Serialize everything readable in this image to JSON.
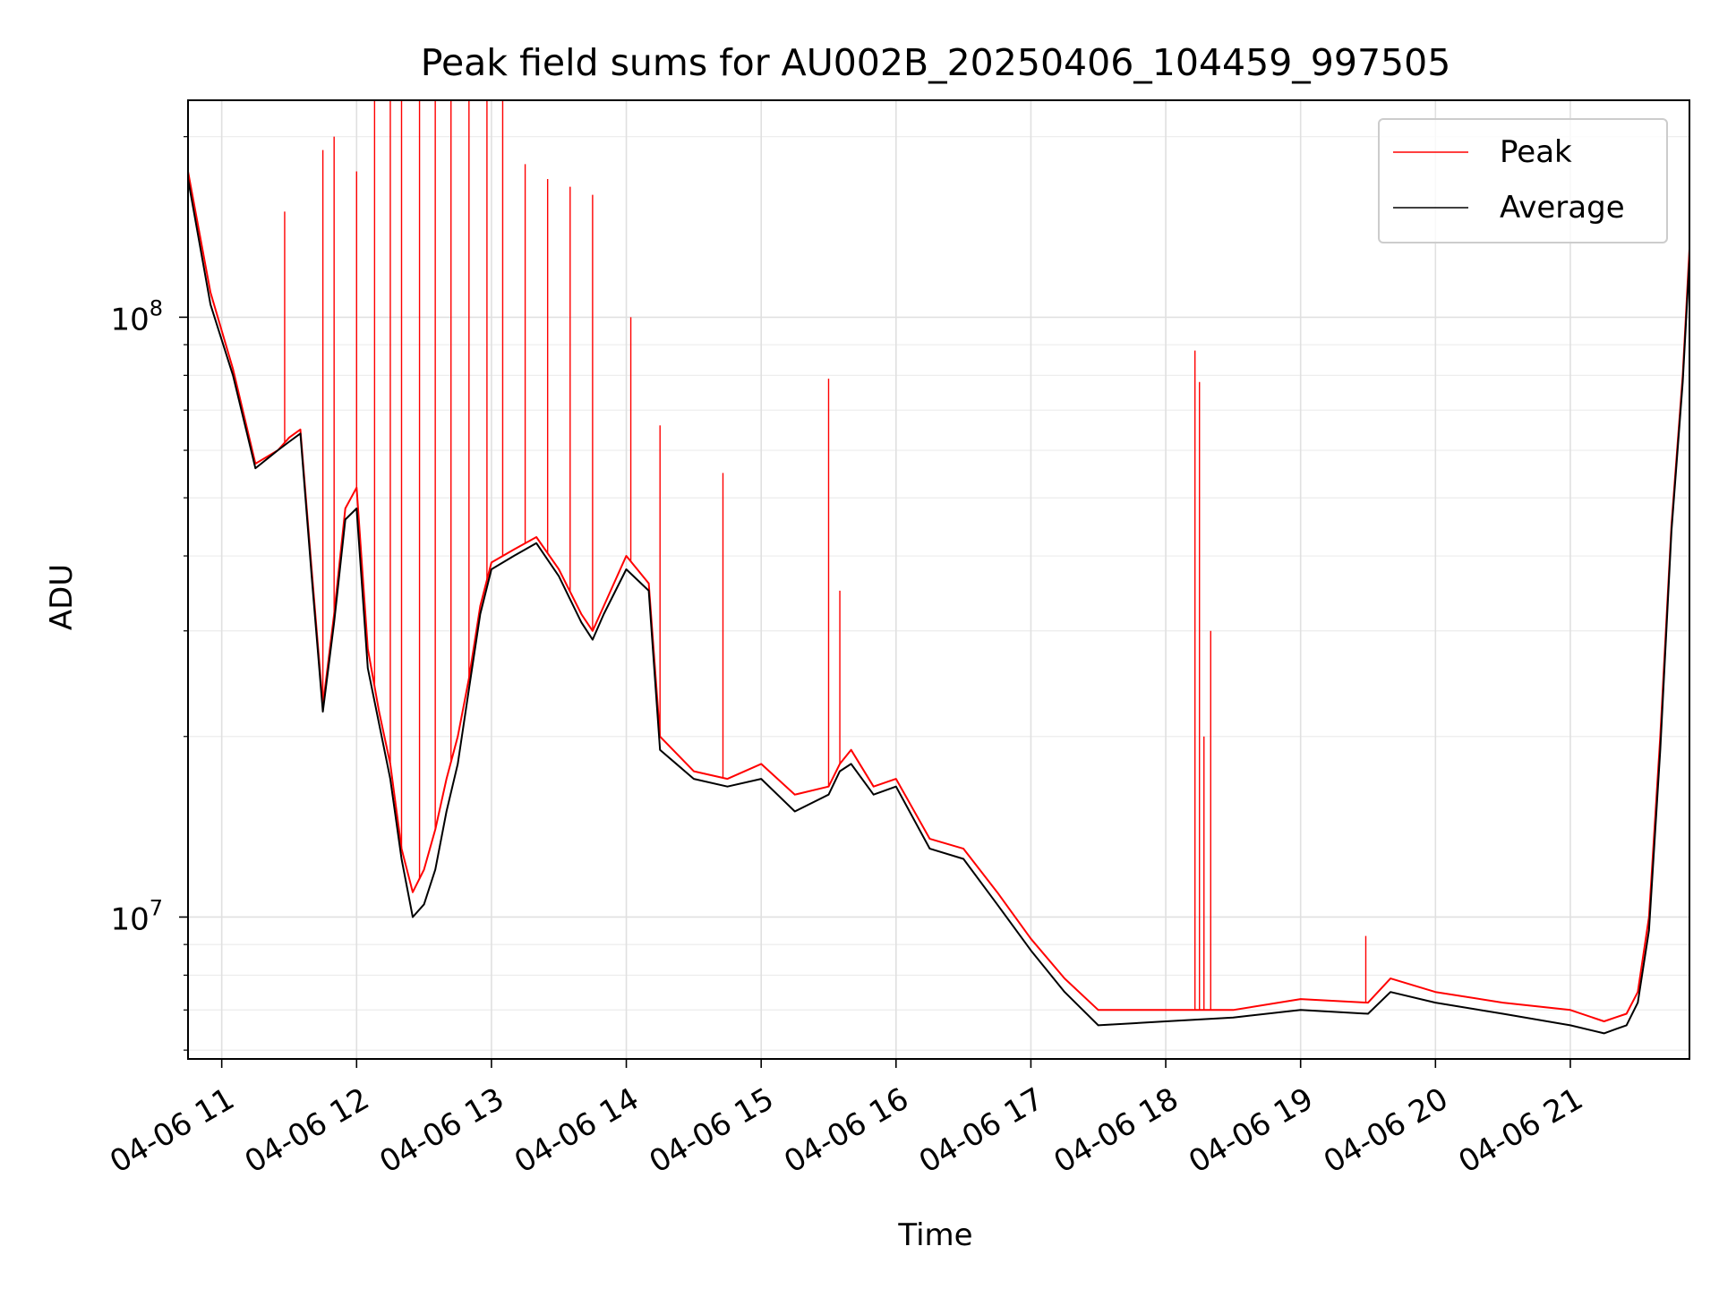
{
  "chart_data": {
    "type": "line",
    "title": "Peak field sums for AU002B_20250406_104459_997505",
    "xlabel": "Time",
    "ylabel": "ADU",
    "yscale": "log",
    "ylim": [
      5800000,
      230000000
    ],
    "xlim": [
      "2025-04-06 10:45",
      "2025-04-06 21:53"
    ],
    "grid": true,
    "legend_position": "top-right",
    "x_tick_labels": [
      "04-06 11",
      "04-06 12",
      "04-06 13",
      "04-06 14",
      "04-06 15",
      "04-06 16",
      "04-06 17",
      "04-06 18",
      "04-06 19",
      "04-06 20",
      "04-06 21"
    ],
    "x_ticks": [
      "2025-04-06 11:00",
      "2025-04-06 12:00",
      "2025-04-06 13:00",
      "2025-04-06 14:00",
      "2025-04-06 15:00",
      "2025-04-06 16:00",
      "2025-04-06 17:00",
      "2025-04-06 18:00",
      "2025-04-06 19:00",
      "2025-04-06 20:00",
      "2025-04-06 21:00"
    ],
    "y_ticks": [
      10000000,
      100000000
    ],
    "y_tick_labels": [
      {
        "base": "10",
        "exp": "7"
      },
      {
        "base": "10",
        "exp": "8"
      }
    ],
    "series": [
      {
        "name": "Peak",
        "color": "#ff0000",
        "x": [
          "2025-04-06 10:45",
          "2025-04-06 10:55",
          "2025-04-06 11:05",
          "2025-04-06 11:15",
          "2025-04-06 11:25",
          "2025-04-06 11:30",
          "2025-04-06 11:35",
          "2025-04-06 11:40",
          "2025-04-06 11:45",
          "2025-04-06 11:50",
          "2025-04-06 11:55",
          "2025-04-06 12:00",
          "2025-04-06 12:05",
          "2025-04-06 12:10",
          "2025-04-06 12:15",
          "2025-04-06 12:20",
          "2025-04-06 12:25",
          "2025-04-06 12:30",
          "2025-04-06 12:35",
          "2025-04-06 12:40",
          "2025-04-06 12:45",
          "2025-04-06 12:50",
          "2025-04-06 12:55",
          "2025-04-06 13:00",
          "2025-04-06 13:10",
          "2025-04-06 13:20",
          "2025-04-06 13:30",
          "2025-04-06 13:40",
          "2025-04-06 13:45",
          "2025-04-06 13:50",
          "2025-04-06 14:00",
          "2025-04-06 14:10",
          "2025-04-06 14:15",
          "2025-04-06 14:30",
          "2025-04-06 14:45",
          "2025-04-06 15:00",
          "2025-04-06 15:15",
          "2025-04-06 15:30",
          "2025-04-06 15:35",
          "2025-04-06 15:40",
          "2025-04-06 15:50",
          "2025-04-06 16:00",
          "2025-04-06 16:15",
          "2025-04-06 16:30",
          "2025-04-06 16:45",
          "2025-04-06 17:00",
          "2025-04-06 17:15",
          "2025-04-06 17:30",
          "2025-04-06 18:00",
          "2025-04-06 18:30",
          "2025-04-06 19:00",
          "2025-04-06 19:30",
          "2025-04-06 19:40",
          "2025-04-06 20:00",
          "2025-04-06 20:30",
          "2025-04-06 21:00",
          "2025-04-06 21:15",
          "2025-04-06 21:20",
          "2025-04-06 21:25",
          "2025-04-06 21:30",
          "2025-04-06 21:35",
          "2025-04-06 21:40",
          "2025-04-06 21:45",
          "2025-04-06 21:50",
          "2025-04-06 21:53"
        ],
        "values": [
          175000000,
          110000000,
          82000000,
          57000000,
          60000000,
          63000000,
          65000000,
          38000000,
          22500000,
          32000000,
          48000000,
          52000000,
          28000000,
          22000000,
          18000000,
          13000000,
          11000000,
          12000000,
          14000000,
          17000000,
          20000000,
          25000000,
          33000000,
          39000000,
          41000000,
          43000000,
          38000000,
          32000000,
          30000000,
          33000000,
          40000000,
          36000000,
          20000000,
          17500000,
          17000000,
          18000000,
          16000000,
          16500000,
          18000000,
          19000000,
          16500000,
          17000000,
          13500000,
          13000000,
          11000000,
          9200000,
          7900000,
          7000000,
          7000000,
          7000000,
          7300000,
          7200000,
          7900000,
          7500000,
          7200000,
          7000000,
          6700000,
          6800000,
          6900000,
          7500000,
          10000000,
          20000000,
          45000000,
          80000000,
          130000000
        ],
        "spikes": [
          {
            "x": "2025-04-06 11:28",
            "value": 150000000
          },
          {
            "x": "2025-04-06 11:45",
            "value": 190000000
          },
          {
            "x": "2025-04-06 11:50",
            "value": 200000000
          },
          {
            "x": "2025-04-06 12:00",
            "value": 175000000
          },
          {
            "x": "2025-04-06 12:08",
            "value": 230000000
          },
          {
            "x": "2025-04-06 12:15",
            "value": 230000000
          },
          {
            "x": "2025-04-06 12:20",
            "value": 230000000
          },
          {
            "x": "2025-04-06 12:28",
            "value": 230000000
          },
          {
            "x": "2025-04-06 12:35",
            "value": 230000000
          },
          {
            "x": "2025-04-06 12:42",
            "value": 230000000
          },
          {
            "x": "2025-04-06 12:50",
            "value": 230000000
          },
          {
            "x": "2025-04-06 12:58",
            "value": 230000000
          },
          {
            "x": "2025-04-06 13:05",
            "value": 230000000
          },
          {
            "x": "2025-04-06 13:15",
            "value": 180000000
          },
          {
            "x": "2025-04-06 13:25",
            "value": 170000000
          },
          {
            "x": "2025-04-06 13:35",
            "value": 165000000
          },
          {
            "x": "2025-04-06 13:45",
            "value": 160000000
          },
          {
            "x": "2025-04-06 14:02",
            "value": 100000000
          },
          {
            "x": "2025-04-06 14:15",
            "value": 66000000
          },
          {
            "x": "2025-04-06 14:43",
            "value": 55000000
          },
          {
            "x": "2025-04-06 15:30",
            "value": 79000000
          },
          {
            "x": "2025-04-06 15:35",
            "value": 35000000
          },
          {
            "x": "2025-04-06 18:13",
            "value": 88000000
          },
          {
            "x": "2025-04-06 18:15",
            "value": 78000000
          },
          {
            "x": "2025-04-06 18:17",
            "value": 20000000
          },
          {
            "x": "2025-04-06 18:20",
            "value": 30000000
          },
          {
            "x": "2025-04-06 19:29",
            "value": 9300000
          }
        ]
      },
      {
        "name": "Average",
        "color": "#000000",
        "x": [
          "2025-04-06 10:45",
          "2025-04-06 10:55",
          "2025-04-06 11:05",
          "2025-04-06 11:15",
          "2025-04-06 11:25",
          "2025-04-06 11:30",
          "2025-04-06 11:35",
          "2025-04-06 11:40",
          "2025-04-06 11:45",
          "2025-04-06 11:50",
          "2025-04-06 11:55",
          "2025-04-06 12:00",
          "2025-04-06 12:05",
          "2025-04-06 12:10",
          "2025-04-06 12:15",
          "2025-04-06 12:20",
          "2025-04-06 12:25",
          "2025-04-06 12:30",
          "2025-04-06 12:35",
          "2025-04-06 12:40",
          "2025-04-06 12:45",
          "2025-04-06 12:50",
          "2025-04-06 12:55",
          "2025-04-06 13:00",
          "2025-04-06 13:10",
          "2025-04-06 13:20",
          "2025-04-06 13:30",
          "2025-04-06 13:40",
          "2025-04-06 13:45",
          "2025-04-06 13:50",
          "2025-04-06 14:00",
          "2025-04-06 14:10",
          "2025-04-06 14:15",
          "2025-04-06 14:30",
          "2025-04-06 14:45",
          "2025-04-06 15:00",
          "2025-04-06 15:15",
          "2025-04-06 15:30",
          "2025-04-06 15:35",
          "2025-04-06 15:40",
          "2025-04-06 15:50",
          "2025-04-06 16:00",
          "2025-04-06 16:15",
          "2025-04-06 16:30",
          "2025-04-06 16:45",
          "2025-04-06 17:00",
          "2025-04-06 17:15",
          "2025-04-06 17:30",
          "2025-04-06 18:00",
          "2025-04-06 18:30",
          "2025-04-06 19:00",
          "2025-04-06 19:30",
          "2025-04-06 19:40",
          "2025-04-06 20:00",
          "2025-04-06 20:30",
          "2025-04-06 21:00",
          "2025-04-06 21:15",
          "2025-04-06 21:20",
          "2025-04-06 21:25",
          "2025-04-06 21:30",
          "2025-04-06 21:35",
          "2025-04-06 21:40",
          "2025-04-06 21:45",
          "2025-04-06 21:50",
          "2025-04-06 21:53"
        ],
        "values": [
          170000000,
          105000000,
          80000000,
          56000000,
          60000000,
          62000000,
          64000000,
          37000000,
          22000000,
          31000000,
          46000000,
          48000000,
          26000000,
          21000000,
          17000000,
          12500000,
          10000000,
          10500000,
          12000000,
          15000000,
          18000000,
          24000000,
          32000000,
          38000000,
          40000000,
          42000000,
          37000000,
          31000000,
          29000000,
          32000000,
          38000000,
          35000000,
          19000000,
          17000000,
          16500000,
          17000000,
          15000000,
          16000000,
          17500000,
          18000000,
          16000000,
          16500000,
          13000000,
          12500000,
          10500000,
          8800000,
          7500000,
          6600000,
          6700000,
          6800000,
          7000000,
          6900000,
          7500000,
          7200000,
          6900000,
          6600000,
          6400000,
          6500000,
          6600000,
          7200000,
          9500000,
          19000000,
          44000000,
          78000000,
          125000000
        ]
      }
    ]
  }
}
